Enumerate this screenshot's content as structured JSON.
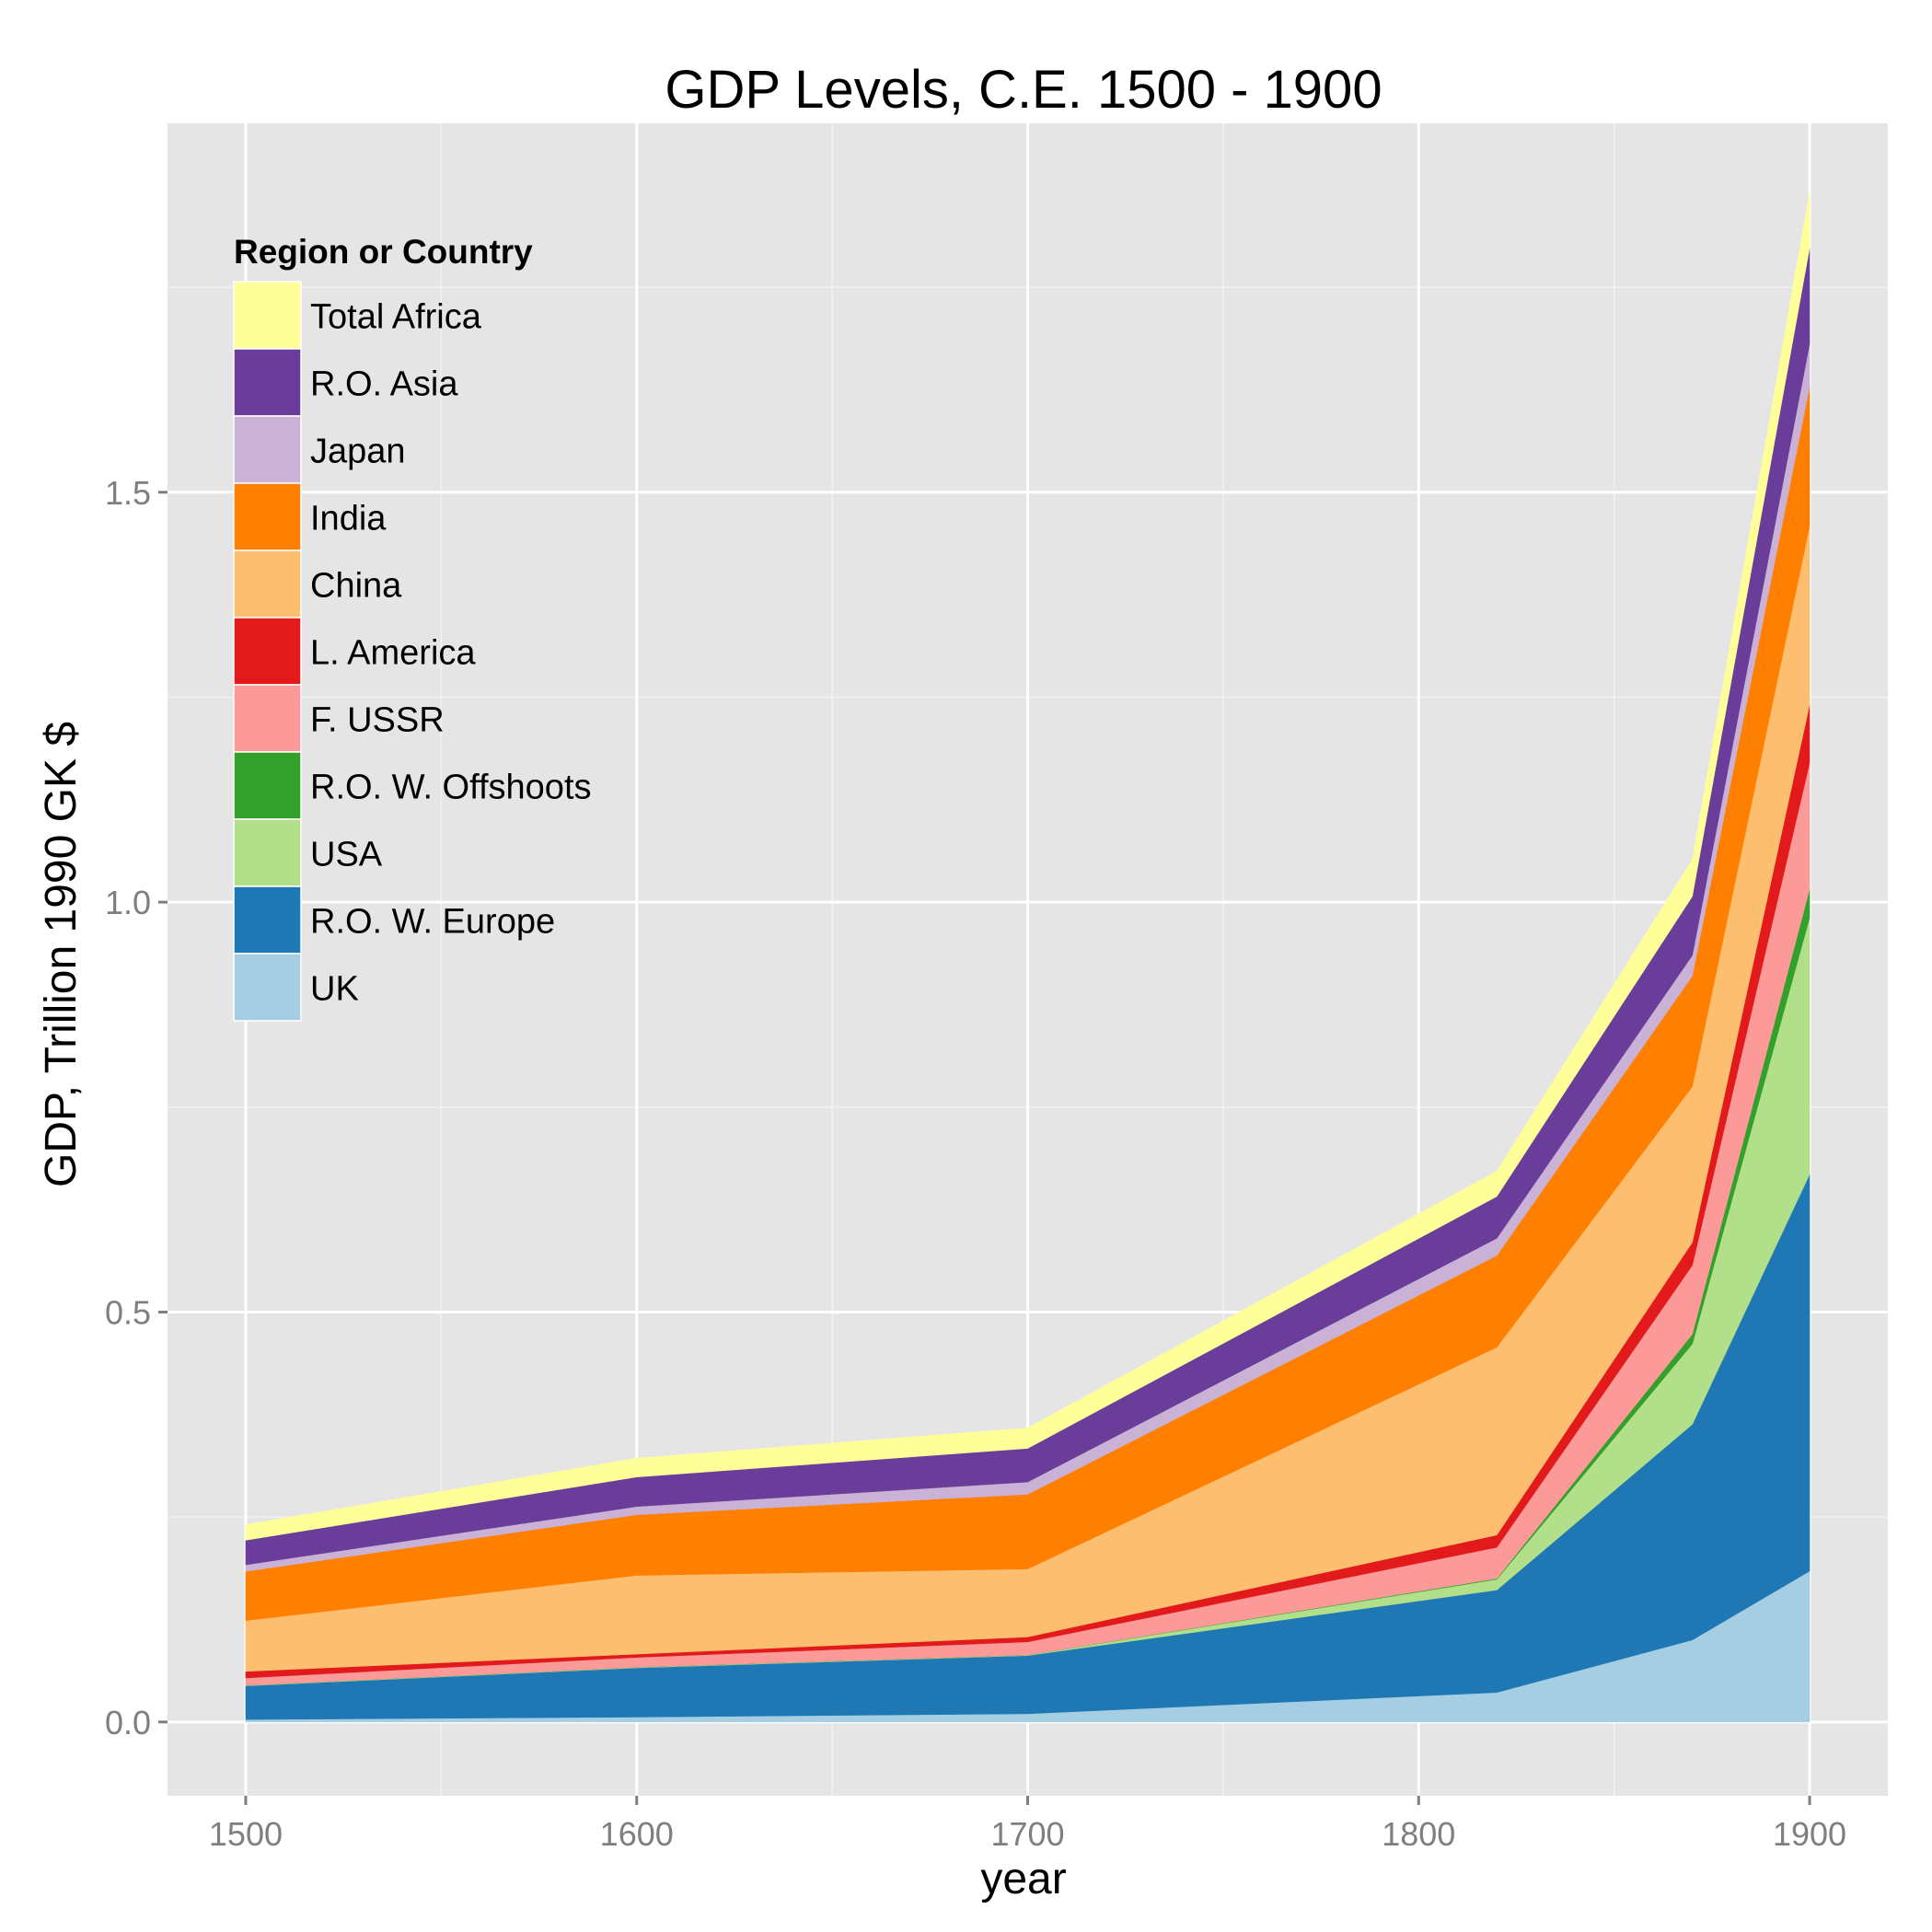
{
  "chart_data": {
    "type": "area",
    "stacked": true,
    "title": "GDP Levels, C.E. 1500 - 1900",
    "xlabel": "year",
    "ylabel": "GDP, Trillion 1990 GK $",
    "x": [
      1500,
      1600,
      1700,
      1820,
      1870,
      1900
    ],
    "xlim": [
      1480,
      1920
    ],
    "ylim": [
      -0.09,
      1.95
    ],
    "x_ticks": [
      1500,
      1600,
      1700,
      1800,
      1900
    ],
    "x_tick_labels": [
      "1500",
      "1600",
      "1700",
      "1800",
      "1900"
    ],
    "y_ticks": [
      0.0,
      0.5,
      1.0,
      1.5
    ],
    "y_tick_labels": [
      "0.0",
      "0.5",
      "1.0",
      "1.5"
    ],
    "grid": true,
    "legend": {
      "title": "Region or Country",
      "placement": "top-left (inside plot)"
    },
    "series": [
      {
        "name": "UK",
        "color": "#a6cee3",
        "values": [
          0.003,
          0.006,
          0.01,
          0.036,
          0.1,
          0.184
        ]
      },
      {
        "name": "R.O. W. Europe",
        "color": "#1f78b4",
        "values": [
          0.041,
          0.06,
          0.071,
          0.125,
          0.263,
          0.484
        ]
      },
      {
        "name": "USA",
        "color": "#b2df8a",
        "values": [
          0.0005,
          0.0006,
          0.0005,
          0.013,
          0.098,
          0.313
        ]
      },
      {
        "name": "R.O. W. Offshoots",
        "color": "#33a02c",
        "values": [
          0.0002,
          0.0002,
          0.0002,
          0.001,
          0.012,
          0.035
        ]
      },
      {
        "name": "F. USSR",
        "color": "#fb9a99",
        "values": [
          0.009,
          0.012,
          0.016,
          0.038,
          0.084,
          0.154
        ]
      },
      {
        "name": "L. America",
        "color": "#e31a1c",
        "values": [
          0.008,
          0.004,
          0.006,
          0.015,
          0.028,
          0.071
        ]
      },
      {
        "name": "China",
        "color": "#fdbf6f",
        "values": [
          0.062,
          0.096,
          0.083,
          0.229,
          0.19,
          0.218
        ]
      },
      {
        "name": "India",
        "color": "#ff7f00",
        "values": [
          0.06,
          0.074,
          0.091,
          0.112,
          0.135,
          0.17
        ]
      },
      {
        "name": "Japan",
        "color": "#cab2d6",
        "values": [
          0.008,
          0.01,
          0.015,
          0.021,
          0.025,
          0.052
        ]
      },
      {
        "name": "R.O. Asia",
        "color": "#6a3d9a",
        "values": [
          0.03,
          0.036,
          0.041,
          0.051,
          0.072,
          0.117
        ]
      },
      {
        "name": "Total Africa",
        "color": "#ffff99",
        "values": [
          0.019,
          0.023,
          0.025,
          0.031,
          0.045,
          0.068
        ]
      }
    ]
  }
}
